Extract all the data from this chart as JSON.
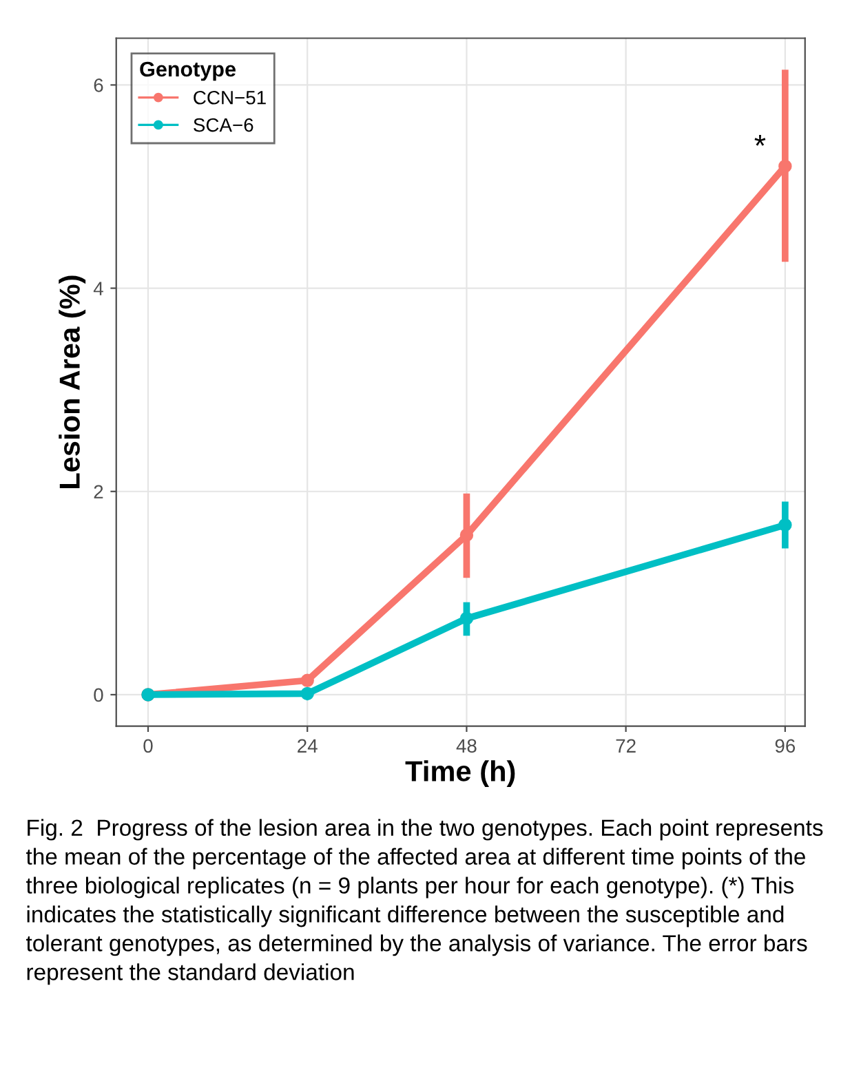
{
  "chart_data": {
    "type": "line",
    "xlabel": "Time (h)",
    "ylabel": "Lesion Area (%)",
    "legend_title": "Genotype",
    "x": [
      0,
      24,
      48,
      96
    ],
    "series": [
      {
        "name": "CCN−51",
        "color": "#f8766d",
        "values": [
          0,
          0.14,
          1.57,
          5.2
        ],
        "errors": [
          null,
          null,
          [
            1.15,
            1.98
          ],
          [
            4.26,
            6.15
          ]
        ]
      },
      {
        "name": "SCA−6",
        "color": "#00bfc4",
        "values": [
          0,
          0.01,
          0.75,
          1.67
        ],
        "errors": [
          null,
          null,
          [
            0.58,
            0.91
          ],
          [
            1.44,
            1.9
          ]
        ]
      }
    ],
    "xlim": [
      -4.8,
      99
    ],
    "xticks": [
      0,
      24,
      48,
      72,
      96
    ],
    "ylim": [
      -0.31,
      6.46
    ],
    "yticks": [
      0,
      2,
      4,
      6
    ],
    "grid": true,
    "legend": "top left",
    "marker": "circle",
    "annotations": [
      {
        "text": "*",
        "x": 96,
        "y": 5.2
      },
      "Fig. 2  Progress of the lesion area in the two genotypes. Each point represents the mean of the percentage of the affected area at different time points of the three biological replicates (n = 9 plants per hour for each genotype). (*) This indicates the statistically significant difference between the susceptible and tolerant genotypes, as determined by the analysis of variance. The error bars represent the standard deviation"
    ]
  }
}
